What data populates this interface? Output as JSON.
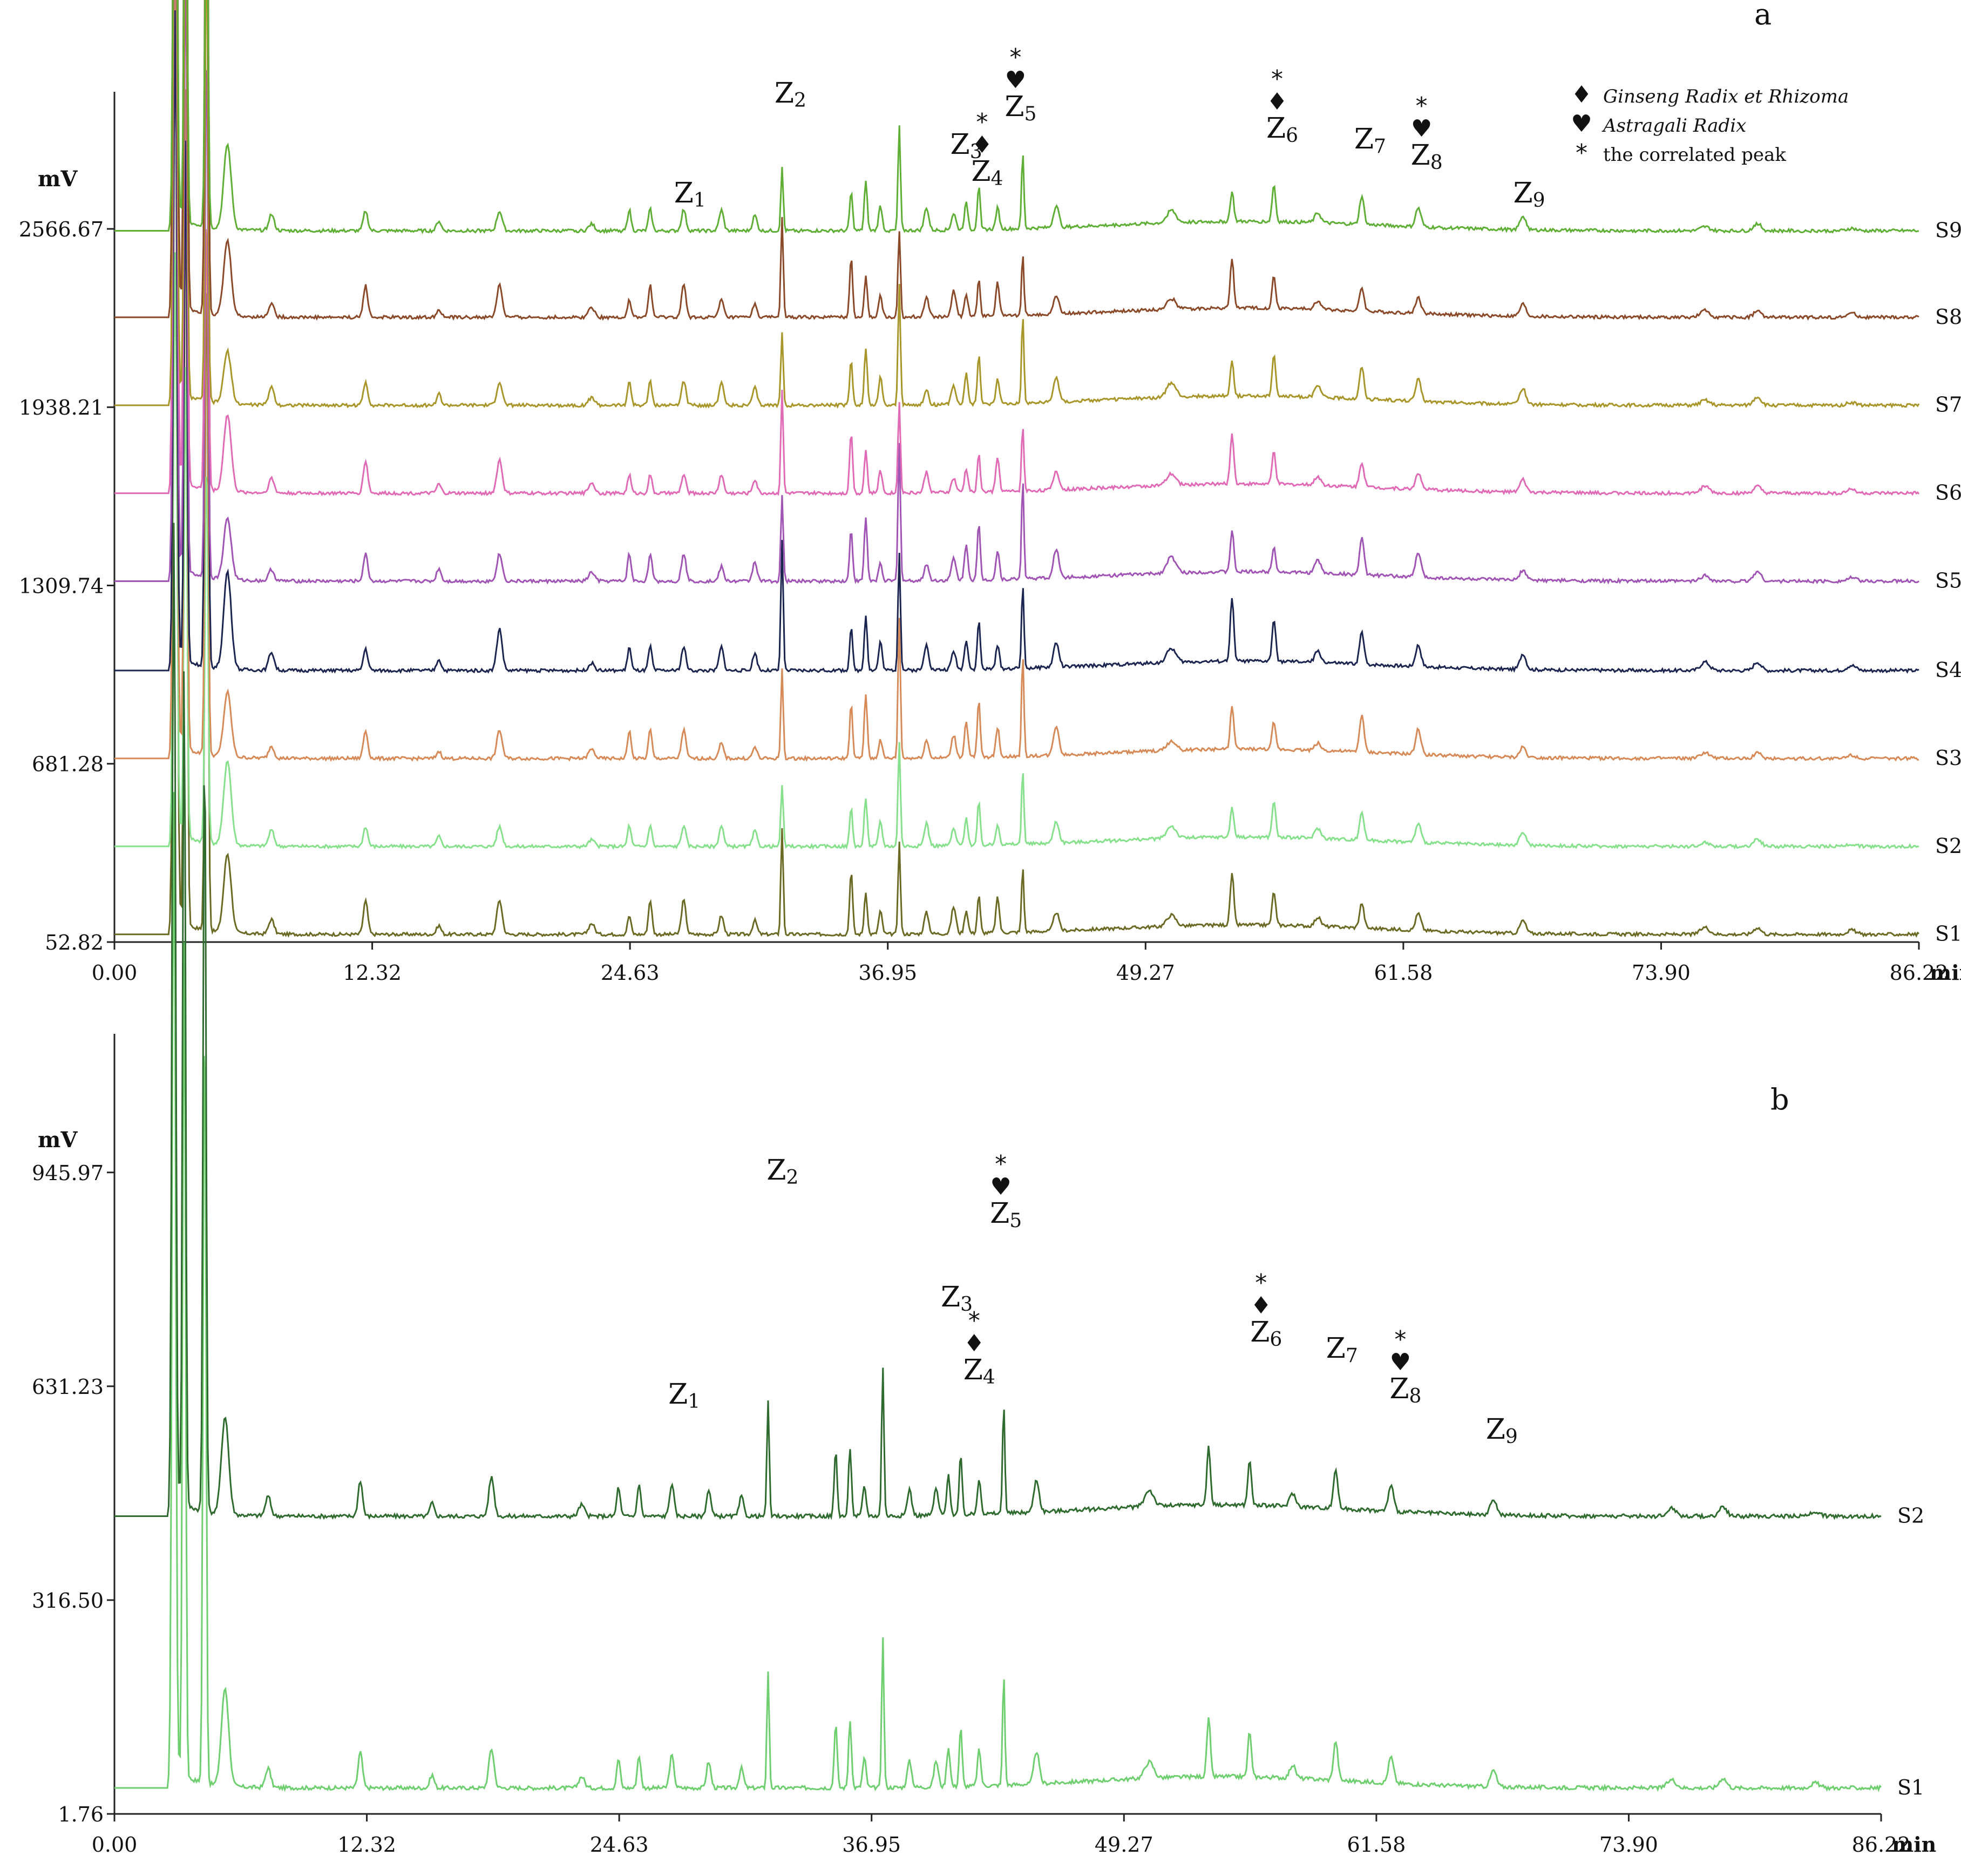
{
  "chart_data": [
    {
      "panel": "a",
      "type": "line",
      "title": "",
      "xlabel": "min",
      "ylabel": "mV",
      "x_ticks": [
        "0.00",
        "12.32",
        "24.63",
        "36.95",
        "49.27",
        "61.58",
        "73.90",
        "86.22"
      ],
      "y_ticks": [
        "52.82",
        "681.28",
        "1309.74",
        "1938.21",
        "2566.67"
      ],
      "xlim": [
        0,
        86.22
      ],
      "ylim": [
        52.82,
        3050
      ],
      "series": [
        {
          "name": "S1",
          "color": "#6b6a25",
          "baseline": 80,
          "scale": 1.0
        },
        {
          "name": "S2",
          "color": "#86e08c",
          "baseline": 390,
          "scale": 0.85
        },
        {
          "name": "S3",
          "color": "#d68a58",
          "baseline": 700,
          "scale": 0.9
        },
        {
          "name": "S4",
          "color": "#1b2550",
          "baseline": 1010,
          "scale": 1.05
        },
        {
          "name": "S5",
          "color": "#a055b5",
          "baseline": 1325,
          "scale": 0.95
        },
        {
          "name": "S6",
          "color": "#e06ab5",
          "baseline": 1635,
          "scale": 0.9
        },
        {
          "name": "S7",
          "color": "#a8962a",
          "baseline": 1945,
          "scale": 0.9
        },
        {
          "name": "S8",
          "color": "#8a4a2a",
          "baseline": 2255,
          "scale": 0.95
        },
        {
          "name": "S9",
          "color": "#5fae35",
          "baseline": 2560,
          "scale": 0.85
        }
      ],
      "peaks": [
        {
          "label": "Z",
          "sub": "1",
          "rt": 27.1,
          "symbols": ""
        },
        {
          "label": "Z",
          "sub": "2",
          "rt": 31.9,
          "symbols": ""
        },
        {
          "label": "Z",
          "sub": "3",
          "rt": 40.3,
          "symbols": ""
        },
        {
          "label": "Z",
          "sub": "4",
          "rt": 41.3,
          "symbols": "*♦"
        },
        {
          "label": "Z",
          "sub": "5",
          "rt": 42.9,
          "symbols": "*♥"
        },
        {
          "label": "Z",
          "sub": "6",
          "rt": 55.4,
          "symbols": "*♦"
        },
        {
          "label": "Z",
          "sub": "7",
          "rt": 59.6,
          "symbols": ""
        },
        {
          "label": "Z",
          "sub": "8",
          "rt": 62.3,
          "symbols": "*♥"
        },
        {
          "label": "Z",
          "sub": "9",
          "rt": 67.2,
          "symbols": ""
        }
      ],
      "legend": [
        {
          "symbol": "♦",
          "text": "Ginseng Radix et Rhizoma",
          "italic": true
        },
        {
          "symbol": "♥",
          "text": "Astragali Radix",
          "italic": true
        },
        {
          "symbol": "*",
          "text": "the correlated peak",
          "italic": false
        }
      ]
    },
    {
      "panel": "b",
      "type": "line",
      "title": "",
      "xlabel": "min",
      "ylabel": "mV",
      "x_ticks": [
        "0.00",
        "12.32",
        "24.63",
        "36.95",
        "49.27",
        "61.58",
        "73.90",
        "86.22"
      ],
      "y_ticks": [
        "1.76",
        "316.50",
        "631.23",
        "945.97"
      ],
      "xlim": [
        0,
        86.22
      ],
      "ylim": [
        1.76,
        1150
      ],
      "series": [
        {
          "name": "S1",
          "color": "#6fcf70",
          "baseline": 40
        },
        {
          "name": "S2",
          "color": "#2f6a2f",
          "baseline": 440
        }
      ],
      "peaks": [
        {
          "label": "Z",
          "sub": "1",
          "rt": 27.4,
          "symbols": ""
        },
        {
          "label": "Z",
          "sub": "2",
          "rt": 32.2,
          "symbols": ""
        },
        {
          "label": "Z",
          "sub": "3",
          "rt": 40.7,
          "symbols": ""
        },
        {
          "label": "Z",
          "sub": "4",
          "rt": 41.8,
          "symbols": "*♦"
        },
        {
          "label": "Z",
          "sub": "5",
          "rt": 43.1,
          "symbols": "*♥"
        },
        {
          "label": "Z",
          "sub": "6",
          "rt": 55.8,
          "symbols": "*♦"
        },
        {
          "label": "Z",
          "sub": "7",
          "rt": 59.5,
          "symbols": ""
        },
        {
          "label": "Z",
          "sub": "8",
          "rt": 62.6,
          "symbols": "*♥"
        },
        {
          "label": "Z",
          "sub": "9",
          "rt": 67.3,
          "symbols": ""
        }
      ]
    }
  ]
}
